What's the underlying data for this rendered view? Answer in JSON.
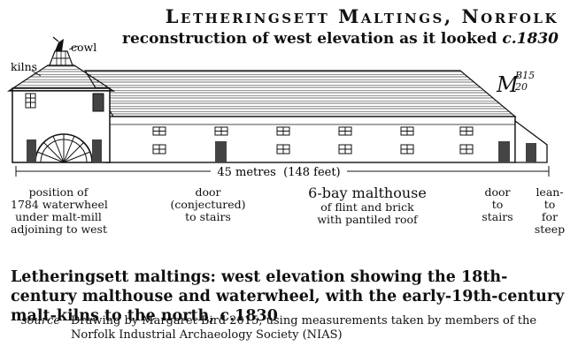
{
  "title": {
    "main": "Letheringsett Maltings",
    "county": ", Norfolk",
    "sub_prefix": "reconstruction of west elevation as it looked ",
    "sub_date": "c.1830"
  },
  "labels": {
    "cowl": "cowl",
    "kilns": "kilns",
    "signature": "MB 15 20",
    "measure": "45 metres  (148 feet)",
    "waterwheel": [
      "position of",
      "1784 waterwheel",
      "under malt-mill",
      "adjoining to west"
    ],
    "door_conjectured": [
      "door",
      "(conjectured)",
      "to stairs"
    ],
    "malthouse_title": "6-bay malthouse",
    "malthouse_desc": [
      "of flint and brick",
      "with pantiled roof"
    ],
    "door_stairs": [
      "door",
      "to",
      "stairs"
    ],
    "leanto": [
      "lean-",
      "to",
      "for",
      "steep"
    ]
  },
  "caption": "Letheringsett maltings: west elevation showing the 18th-century malthouse and waterwheel, with the early-19th-century malt-kilns to the north, c.1830",
  "source": {
    "tag": "source",
    "text": "Drawing by Margaret Bird 2015, using measurements taken by members of the Norfolk Industrial Archaeology Society (NIAS)"
  }
}
